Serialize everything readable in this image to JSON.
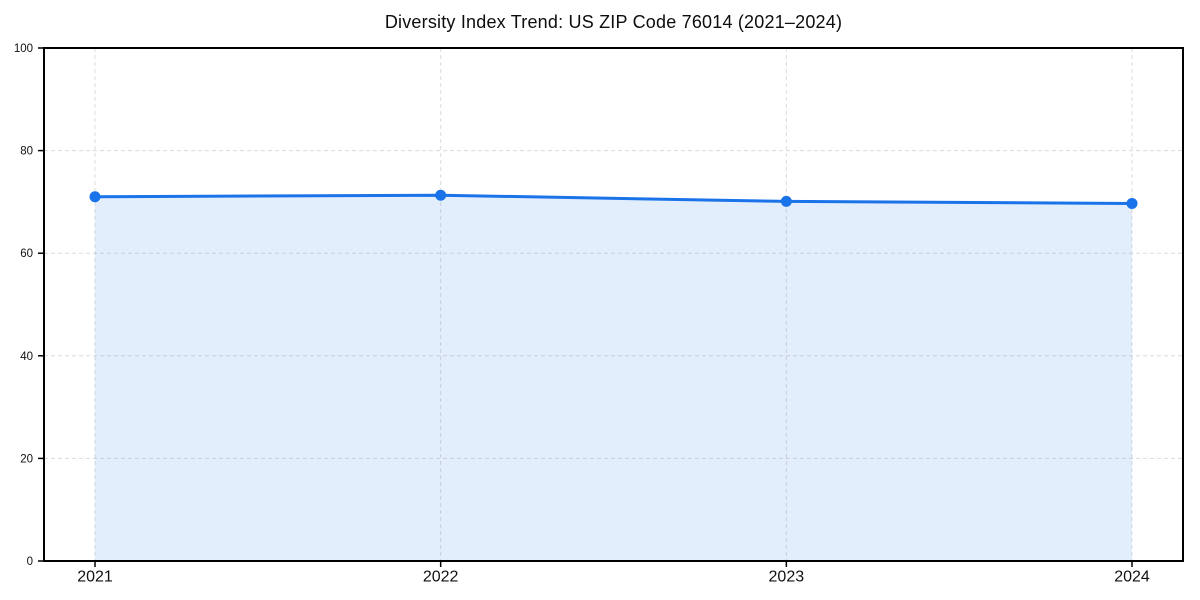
{
  "page": {
    "background": "#ffffff"
  },
  "chart_data": {
    "type": "area",
    "title": "Diversity Index Trend: US ZIP Code 76014 (2021–2024)",
    "x": [
      "2021",
      "2022",
      "2023",
      "2024"
    ],
    "series": [
      {
        "name": "Diversity Index",
        "values": [
          71.0,
          71.3,
          70.1,
          69.7
        ]
      }
    ],
    "xlabel": "",
    "ylabel": "",
    "ylim": [
      0,
      100
    ],
    "yticks": [
      0,
      20,
      40,
      60,
      80,
      100
    ],
    "grid": "on",
    "grid_style": "dashed",
    "legend": "none",
    "line_color": "#1a73e8",
    "marker_color": "#1a73e8",
    "fill_color": "rgba(26,115,232,0.12)",
    "grid_color": "#dcdcdc",
    "frame_color": "#000000",
    "tick_label_color": "#111111"
  }
}
